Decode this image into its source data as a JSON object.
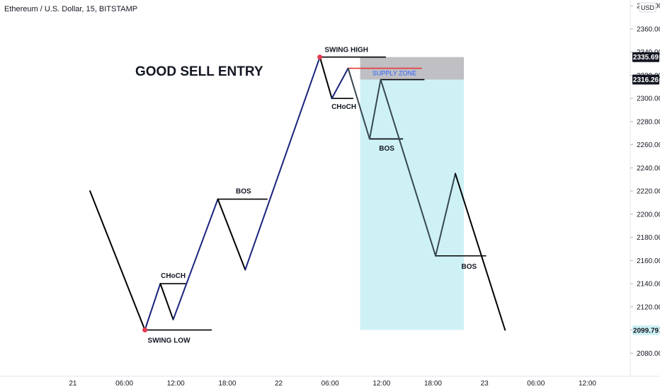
{
  "header": {
    "symbol": "Ethereum / U.S. Dollar, 15, BITSTAMP"
  },
  "chart_data": {
    "type": "line",
    "title": "GOOD SELL ENTRY",
    "currency": "USD",
    "x_unit": "hours from 21 00:00",
    "ylim": [
      2060,
      2385
    ],
    "xlim": [
      -8.5,
      65
    ],
    "y_ticks": [
      "2080.00",
      "2100.00",
      "2120.00",
      "2140.00",
      "2160.00",
      "2180.00",
      "2200.00",
      "2220.00",
      "2240.00",
      "2260.00",
      "2280.00",
      "2300.00",
      "2320.00",
      "2340.00",
      "2360.00",
      "2380.00"
    ],
    "x_ticks": [
      {
        "label": "21",
        "x": 0
      },
      {
        "label": "06:00",
        "x": 6
      },
      {
        "label": "12:00",
        "x": 12
      },
      {
        "label": "18:00",
        "x": 18
      },
      {
        "label": "22",
        "x": 24
      },
      {
        "label": "06:00",
        "x": 30
      },
      {
        "label": "12:00",
        "x": 36
      },
      {
        "label": "18:00",
        "x": 42
      },
      {
        "label": "23",
        "x": 48
      },
      {
        "label": "06:00",
        "x": 54
      },
      {
        "label": "12:00",
        "x": 60
      }
    ],
    "series": [
      {
        "color": "#000000",
        "points": [
          [
            2,
            2220
          ],
          [
            8.4,
            2100
          ]
        ]
      },
      {
        "color": "#1a237e",
        "points": [
          [
            8.4,
            2100
          ],
          [
            10.2,
            2140
          ]
        ]
      },
      {
        "color": "#000000",
        "points": [
          [
            10.2,
            2140
          ],
          [
            11.7,
            2109
          ]
        ]
      },
      {
        "color": "#1a237e",
        "points": [
          [
            11.7,
            2109
          ],
          [
            16.9,
            2213
          ]
        ]
      },
      {
        "color": "#000000",
        "points": [
          [
            16.9,
            2213
          ],
          [
            20.1,
            2152
          ]
        ]
      },
      {
        "color": "#1a237e",
        "points": [
          [
            20.1,
            2152
          ],
          [
            28.8,
            2335.69
          ]
        ]
      },
      {
        "color": "#000000",
        "points": [
          [
            28.8,
            2335.69
          ],
          [
            30.2,
            2300
          ]
        ]
      },
      {
        "color": "#1a237e",
        "points": [
          [
            30.2,
            2300
          ],
          [
            32.1,
            2326
          ]
        ]
      },
      {
        "color": "#37474f",
        "points": [
          [
            32.1,
            2326
          ],
          [
            34.6,
            2265
          ]
        ]
      },
      {
        "color": "#37474f",
        "points": [
          [
            34.6,
            2265
          ],
          [
            35.9,
            2316.26
          ]
        ]
      },
      {
        "color": "#37474f",
        "points": [
          [
            35.9,
            2316.26
          ],
          [
            42.3,
            2164
          ]
        ]
      },
      {
        "color": "#37474f",
        "points": [
          [
            42.3,
            2164
          ],
          [
            44.6,
            2235
          ]
        ]
      },
      {
        "color": "#000000",
        "points": [
          [
            44.6,
            2235
          ],
          [
            50.4,
            2100
          ]
        ]
      }
    ],
    "levels": [
      {
        "y": 2100,
        "x1": 8.4,
        "x2": 16.2,
        "color": "#000000"
      },
      {
        "y": 2140,
        "x1": 10.2,
        "x2": 13.2,
        "color": "#000000"
      },
      {
        "y": 2213,
        "x1": 16.9,
        "x2": 22.7,
        "color": "#000000"
      },
      {
        "y": 2335.69,
        "x1": 28.8,
        "x2": 36.5,
        "color": "#000000"
      },
      {
        "y": 2300,
        "x1": 30.2,
        "x2": 32.7,
        "color": "#000000"
      },
      {
        "y": 2265,
        "x1": 34.6,
        "x2": 38.5,
        "color": "#000000"
      },
      {
        "y": 2164,
        "x1": 42.3,
        "x2": 48.2,
        "color": "#000000"
      },
      {
        "y": 2326,
        "x1": 32.1,
        "x2": 40.7,
        "color": "#e53935"
      },
      {
        "y": 2316.26,
        "x1": 35.9,
        "x2": 41.0,
        "color": "#000000"
      }
    ],
    "pivots": [
      [
        8.4,
        2100
      ],
      [
        28.8,
        2335.69
      ]
    ],
    "zones": [
      {
        "x1": 33.5,
        "x2": 45.6,
        "y1": 2100,
        "y2": 2316.26,
        "color": "#cef1f5"
      },
      {
        "x1": 33.5,
        "x2": 45.6,
        "y1": 2316.26,
        "y2": 2335.69,
        "color": "#bfbfc4"
      }
    ],
    "annotations": [
      {
        "text": "SWING LOW",
        "x": 11.2,
        "y": 2089
      },
      {
        "text": "CHoCH",
        "x": 11.7,
        "y": 2145
      },
      {
        "text": "BOS",
        "x": 19.9,
        "y": 2218
      },
      {
        "text": "SWING HIGH",
        "x": 31.9,
        "y": 2340
      },
      {
        "text": "CHoCH",
        "x": 31.6,
        "y": 2291
      },
      {
        "text": "BOS",
        "x": 36.6,
        "y": 2255
      },
      {
        "text": "BOS",
        "x": 46.2,
        "y": 2153
      }
    ],
    "zone_label": {
      "text": "SUPPLY ZONE",
      "x": 37.5,
      "y": 2320
    },
    "price_badges": [
      {
        "text": "2335.69",
        "y": 2335.69,
        "bg": "#131722",
        "fg": "#ffffff"
      },
      {
        "text": "2316.26",
        "y": 2316.26,
        "bg": "#131722",
        "fg": "#ffffff"
      },
      {
        "text": "2099.79",
        "y": 2099.79,
        "bg": "#cef1f5",
        "fg": "#131722"
      }
    ]
  }
}
